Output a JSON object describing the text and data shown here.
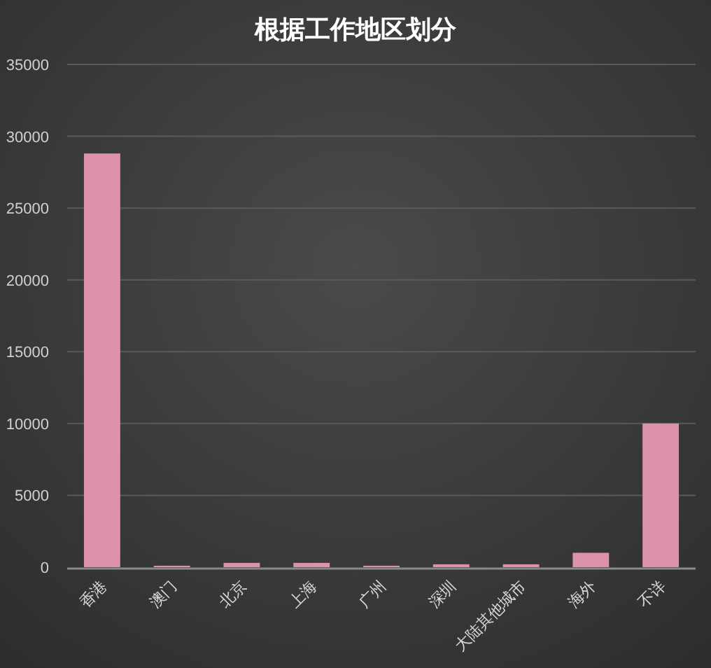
{
  "chart_data": {
    "type": "bar",
    "title": "根据工作地区划分",
    "categories": [
      "香港",
      "澳门",
      "北京",
      "上海",
      "广州",
      "深圳",
      "大陆其他城市",
      "海外",
      "不详"
    ],
    "series": [
      {
        "color": "#dc92ab",
        "values": [
          28800,
          100,
          300,
          300,
          100,
          200,
          200,
          1000,
          10000
        ]
      }
    ],
    "ylim": [
      0,
      35000
    ],
    "yticks": [
      0,
      5000,
      10000,
      15000,
      20000,
      25000,
      30000,
      35000
    ],
    "grid": "y"
  }
}
